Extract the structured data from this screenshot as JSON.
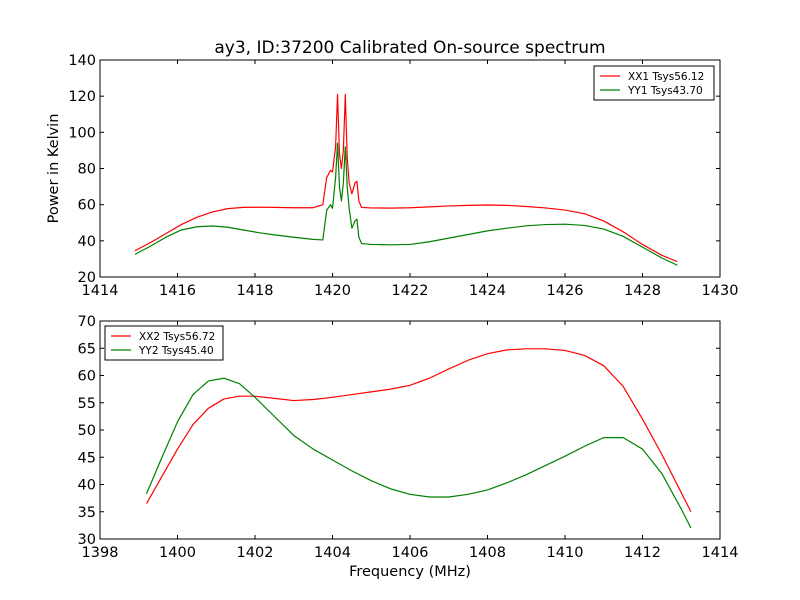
{
  "figure": {
    "title": "ay3, ID:37200 Calibrated On-source spectrum"
  },
  "chart_data": [
    {
      "type": "line",
      "title": "",
      "xlabel": "",
      "ylabel": "Power in Kelvin",
      "xlim": [
        1414,
        1430
      ],
      "ylim": [
        20,
        140
      ],
      "xticks": [
        1414,
        1416,
        1418,
        1420,
        1422,
        1424,
        1426,
        1428,
        1430
      ],
      "yticks": [
        20,
        40,
        60,
        80,
        100,
        120,
        140
      ],
      "grid": false,
      "legend_position": "top-right",
      "series": [
        {
          "name": "XX1 Tsys56.12",
          "color": "#ff0000",
          "x": [
            1414.9,
            1415.3,
            1415.7,
            1416.1,
            1416.5,
            1416.9,
            1417.3,
            1417.7,
            1418.1,
            1418.5,
            1419.0,
            1419.5,
            1419.75,
            1419.85,
            1419.95,
            1420.0,
            1420.08,
            1420.13,
            1420.18,
            1420.23,
            1420.28,
            1420.33,
            1420.38,
            1420.43,
            1420.5,
            1420.58,
            1420.63,
            1420.68,
            1420.75,
            1421.0,
            1421.5,
            1422.0,
            1422.5,
            1423.0,
            1423.5,
            1424.0,
            1424.5,
            1425.0,
            1425.5,
            1426.0,
            1426.5,
            1427.0,
            1427.5,
            1428.0,
            1428.5,
            1428.9
          ],
          "y": [
            34.5,
            39,
            44,
            49,
            53,
            56,
            57.8,
            58.5,
            58.6,
            58.5,
            58.3,
            58.3,
            60,
            75,
            79,
            78,
            92,
            121,
            88,
            80,
            90,
            121,
            86,
            72,
            66,
            72,
            73,
            62,
            58.5,
            58.2,
            58.1,
            58.3,
            58.8,
            59.3,
            59.6,
            59.8,
            59.6,
            59.0,
            58.2,
            57.0,
            55.0,
            51.0,
            45.0,
            38.0,
            32.0,
            28.5
          ]
        },
        {
          "name": "YY1 Tsys43.70",
          "color": "#008000",
          "x": [
            1414.9,
            1415.3,
            1415.7,
            1416.1,
            1416.5,
            1416.9,
            1417.3,
            1417.7,
            1418.1,
            1418.5,
            1419.0,
            1419.5,
            1419.75,
            1419.85,
            1419.95,
            1420.0,
            1420.08,
            1420.13,
            1420.18,
            1420.23,
            1420.28,
            1420.33,
            1420.38,
            1420.43,
            1420.5,
            1420.58,
            1420.63,
            1420.68,
            1420.75,
            1421.0,
            1421.5,
            1422.0,
            1422.5,
            1423.0,
            1423.5,
            1424.0,
            1424.5,
            1425.0,
            1425.5,
            1426.0,
            1426.5,
            1427.0,
            1427.5,
            1428.0,
            1428.5,
            1428.9
          ],
          "y": [
            32.5,
            37,
            42,
            46,
            47.8,
            48.2,
            47.5,
            46,
            44.5,
            43.3,
            42,
            40.8,
            40.5,
            57,
            60,
            58,
            75,
            94,
            70,
            62,
            72,
            92,
            70,
            58,
            47,
            51,
            52,
            42,
            38.5,
            38.0,
            37.8,
            38.0,
            39.5,
            41.5,
            43.5,
            45.5,
            47.0,
            48.3,
            49.0,
            49.2,
            48.5,
            46.5,
            42.5,
            36.5,
            30.5,
            26.5
          ]
        }
      ]
    },
    {
      "type": "line",
      "title": "",
      "xlabel": "Frequency (MHz)",
      "ylabel": "",
      "xlim": [
        1398,
        1414
      ],
      "ylim": [
        30,
        70
      ],
      "xticks": [
        1398,
        1400,
        1402,
        1404,
        1406,
        1408,
        1410,
        1412,
        1414
      ],
      "yticks": [
        30,
        35,
        40,
        45,
        50,
        55,
        60,
        65,
        70
      ],
      "grid": false,
      "legend_position": "top-left",
      "series": [
        {
          "name": "XX2 Tsys56.72",
          "color": "#ff0000",
          "x": [
            1399.2,
            1399.6,
            1400.0,
            1400.4,
            1400.8,
            1401.2,
            1401.6,
            1402.0,
            1402.5,
            1403.0,
            1403.5,
            1404.0,
            1404.5,
            1405.0,
            1405.5,
            1406.0,
            1406.5,
            1407.0,
            1407.5,
            1408.0,
            1408.5,
            1409.0,
            1409.5,
            1410.0,
            1410.5,
            1411.0,
            1411.5,
            1412.0,
            1412.5,
            1413.0,
            1413.25
          ],
          "y": [
            36.5,
            41.5,
            46.5,
            51.0,
            54.0,
            55.7,
            56.2,
            56.2,
            55.8,
            55.4,
            55.6,
            56.0,
            56.5,
            57.0,
            57.5,
            58.2,
            59.5,
            61.2,
            62.8,
            64.0,
            64.7,
            64.9,
            64.9,
            64.6,
            63.7,
            61.8,
            58.0,
            52.0,
            45.5,
            38.5,
            35.0
          ]
        },
        {
          "name": "YY2 Tsys45.40",
          "color": "#008000",
          "x": [
            1399.2,
            1399.6,
            1400.0,
            1400.4,
            1400.8,
            1401.2,
            1401.6,
            1402.0,
            1402.5,
            1403.0,
            1403.5,
            1404.0,
            1404.5,
            1405.0,
            1405.5,
            1406.0,
            1406.5,
            1407.0,
            1407.5,
            1408.0,
            1408.5,
            1409.0,
            1409.5,
            1410.0,
            1410.5,
            1411.0,
            1411.5,
            1412.0,
            1412.5,
            1413.0,
            1413.25
          ],
          "y": [
            38.3,
            45.0,
            51.5,
            56.5,
            59.0,
            59.5,
            58.5,
            56.0,
            52.5,
            49.0,
            46.5,
            44.5,
            42.5,
            40.7,
            39.2,
            38.2,
            37.7,
            37.7,
            38.2,
            39.0,
            40.3,
            41.8,
            43.5,
            45.2,
            47.0,
            48.6,
            48.6,
            46.5,
            42.0,
            35.5,
            32.0
          ]
        }
      ]
    }
  ]
}
